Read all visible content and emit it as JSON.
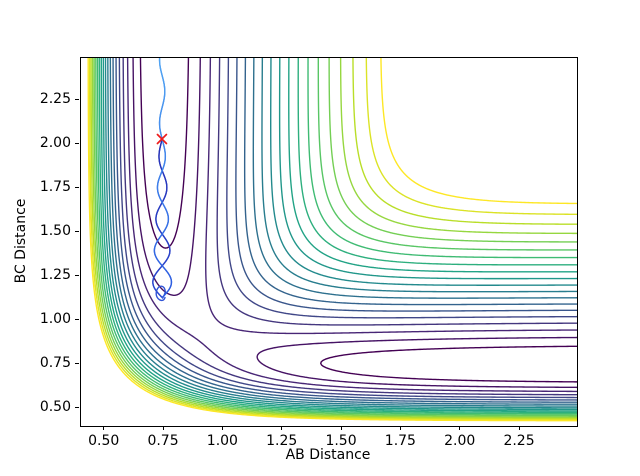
{
  "chart_data": {
    "type": "contour",
    "title": "",
    "xlabel": "AB Distance",
    "ylabel": "BC Distance",
    "xlim": [
      0.4,
      2.49
    ],
    "ylim": [
      0.4,
      2.49
    ],
    "xticks": {
      "values": [
        0.5,
        0.75,
        1.0,
        1.25,
        1.5,
        1.75,
        2.0,
        2.25
      ],
      "labels": [
        "0.50",
        "0.75",
        "1.00",
        "1.25",
        "1.50",
        "1.75",
        "2.00",
        "2.25"
      ]
    },
    "yticks": {
      "values": [
        0.5,
        0.75,
        1.0,
        1.25,
        1.5,
        1.75,
        2.0,
        2.25
      ],
      "labels": [
        "0.50",
        "0.75",
        "1.00",
        "1.25",
        "1.50",
        "1.75",
        "2.00",
        "2.25"
      ]
    },
    "grid": false,
    "legend": null,
    "colormap": "viridis",
    "colormap_stops": [
      "#440154",
      "#482475",
      "#414487",
      "#355f8d",
      "#2a788e",
      "#21918c",
      "#22a884",
      "#44bf70",
      "#7ad151",
      "#bddf26",
      "#fde725"
    ],
    "potential_surface": {
      "model": "LEPS-collinear",
      "D": 4.7466,
      "alpha": 1.9426,
      "re": 0.7414,
      "sato": 0.12,
      "third_distance": "r_AB + r_BC"
    },
    "contour_levels": {
      "min": -4.55,
      "max": -1.45,
      "count": 20
    },
    "start_marker": {
      "x": 0.741,
      "y": 2.03,
      "symbol": "x",
      "color": "#ee1c1c"
    },
    "trajectory": {
      "center_x": 0.742,
      "phase_y0": 2.03,
      "half_period_y": 0.18,
      "amplitude_base": 0.01,
      "amplitude_slope": 0.036,
      "amplitude_max": 0.046,
      "amplitude_above_start": 0.011,
      "incoming": {
        "y_start": 2.03,
        "y_end": 1.127,
        "color_top": "#2732b6",
        "color_bottom": "#2c49d0"
      },
      "outgoing": {
        "y_start": 1.13,
        "y_end": 2.49,
        "color_top": "#52a5f3",
        "color_bottom": "#2d5be0"
      },
      "end_loop": {
        "color": "#2e52d6",
        "points": [
          [
            0.744,
            1.127
          ],
          [
            0.752,
            1.145
          ],
          [
            0.7555,
            1.165
          ],
          [
            0.752,
            1.185
          ],
          [
            0.74,
            1.196
          ],
          [
            0.727,
            1.19
          ],
          [
            0.7185,
            1.172
          ],
          [
            0.716,
            1.15
          ],
          [
            0.72,
            1.13
          ],
          [
            0.731,
            1.116
          ],
          [
            0.742,
            1.112
          ],
          [
            0.7505,
            1.118
          ],
          [
            0.754,
            1.13
          ]
        ]
      }
    }
  }
}
